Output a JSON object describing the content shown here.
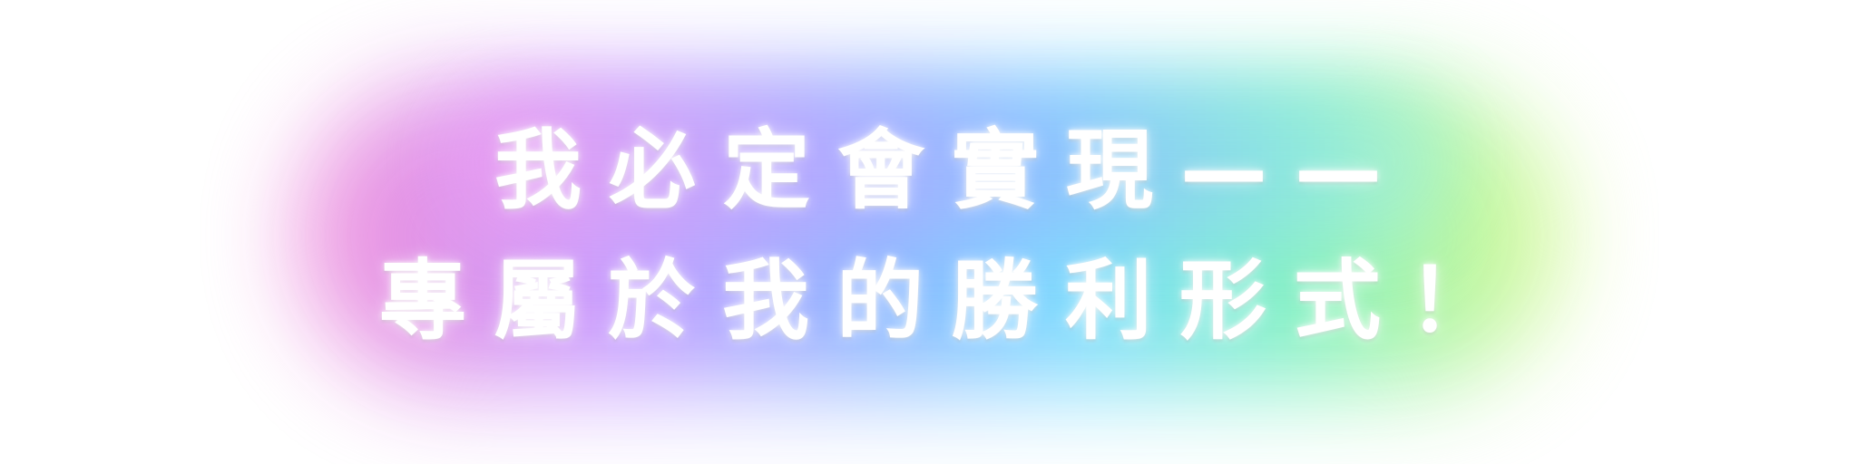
{
  "banner": {
    "line1": "我必定會實現——",
    "line2": "專屬於我的勝利形式！"
  },
  "colors": {
    "text": "#ffffff",
    "glow_pink": "#f08ad8",
    "glow_violet": "#c79aff",
    "glow_blue": "#86b7ff",
    "glow_cyan": "#79dcff",
    "glow_green": "#7cf0c4",
    "glow_yellow_green": "#d9f98a",
    "background": "#ffffff"
  }
}
